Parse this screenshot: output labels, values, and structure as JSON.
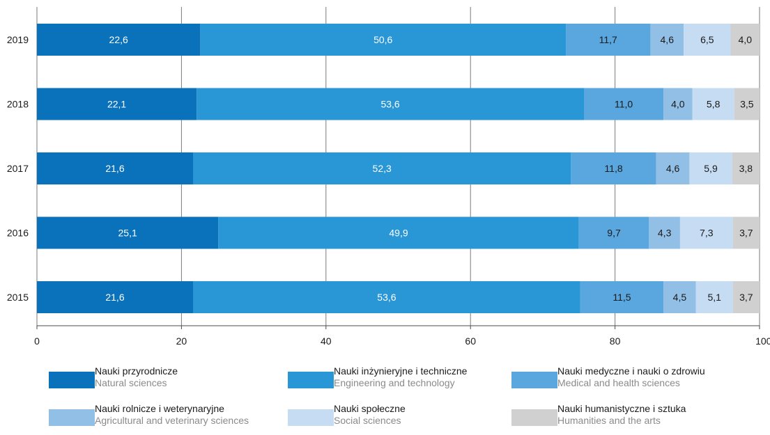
{
  "chart_data": {
    "type": "bar",
    "orientation": "horizontal",
    "stacked": true,
    "categories": [
      "2019",
      "2018",
      "2017",
      "2016",
      "2015"
    ],
    "series": [
      {
        "name": "Nauki przyrodnicze",
        "name_en": "Natural sciences",
        "color": "#0a72ba",
        "values": [
          22.6,
          22.1,
          21.6,
          25.1,
          21.6
        ]
      },
      {
        "name": "Nauki inżynieryjne i techniczne",
        "name_en": "Engineering and technology",
        "color": "#2996d6",
        "values": [
          50.6,
          53.6,
          52.3,
          49.9,
          53.6
        ]
      },
      {
        "name": "Nauki medyczne i nauki o zdrowiu",
        "name_en": "Medical and health sciences",
        "color": "#5aa6de",
        "values": [
          11.7,
          11.0,
          11.8,
          9.7,
          11.5
        ]
      },
      {
        "name": "Nauki rolnicze i weterynaryjne",
        "name_en": "Agricultural and veterinary sciences",
        "color": "#92bfe6",
        "values": [
          4.6,
          4.0,
          4.6,
          4.3,
          4.5
        ]
      },
      {
        "name": "Nauki społeczne",
        "name_en": "Social sciences",
        "color": "#c6dcf3",
        "values": [
          6.5,
          5.8,
          5.9,
          7.3,
          5.1
        ]
      },
      {
        "name": "Nauki humanistyczne i sztuka",
        "name_en": "Humanities and the arts",
        "color": "#d0d0d0",
        "values": [
          4.0,
          3.5,
          3.8,
          3.7,
          3.7
        ]
      }
    ],
    "value_labels": [
      [
        "22,6",
        "50,6",
        "11,7",
        "4,6",
        "6,5",
        "4,0"
      ],
      [
        "22,1",
        "53,6",
        "11,0",
        "4,0",
        "5,8",
        "3,5"
      ],
      [
        "21,6",
        "52,3",
        "11,8",
        "4,6",
        "5,9",
        "3,8"
      ],
      [
        "25,1",
        "49,9",
        "9,7",
        "4,3",
        "7,3",
        "3,7"
      ],
      [
        "21,6",
        "53,6",
        "11,5",
        "4,5",
        "5,1",
        "3,7"
      ]
    ],
    "xlim": [
      0,
      100
    ],
    "x_ticks": [
      "0",
      "20",
      "40",
      "60",
      "80",
      "100%"
    ],
    "grid": true,
    "legend_position": "bottom"
  }
}
